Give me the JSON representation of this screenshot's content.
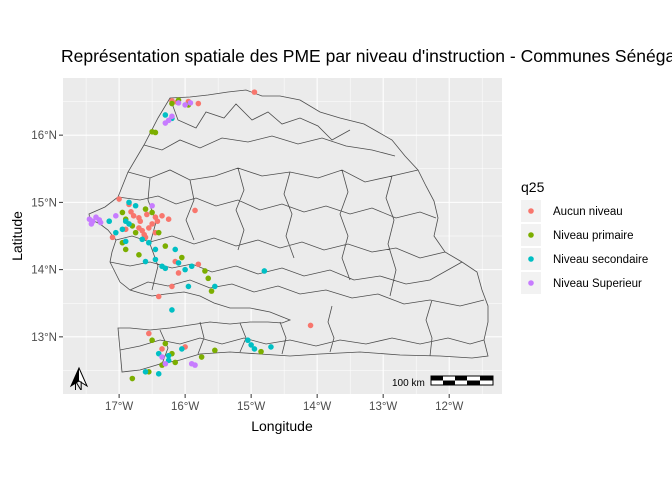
{
  "chart_data": {
    "type": "scatter",
    "title": "Représentation spatiale des PME par niveau d'instruction - Communes Sénégal",
    "xlabel": "Longitude",
    "ylabel": "Latitude",
    "xlim": [
      -17.85,
      -11.2
    ],
    "ylim": [
      12.15,
      16.85
    ],
    "x_ticks": [
      -17,
      -16,
      -15,
      -14,
      -13,
      -12
    ],
    "x_tick_labels": [
      "17°W",
      "16°W",
      "15°W",
      "14°W",
      "13°W",
      "12°W"
    ],
    "y_ticks": [
      13,
      14,
      15,
      16
    ],
    "y_tick_labels": [
      "13°N",
      "14°N",
      "15°N",
      "16°N"
    ],
    "grid": true,
    "legend_placement": "right",
    "legend_title": "q25",
    "scale_bar_label": "100 km",
    "north_arrow_label": "N",
    "series": [
      {
        "name": "Aucun niveau",
        "color": "#F8766D",
        "points": [
          [
            -16.2,
            16.51
          ],
          [
            -16.12,
            16.49
          ],
          [
            -15.95,
            16.5
          ],
          [
            -15.8,
            16.47
          ],
          [
            -14.95,
            16.64
          ],
          [
            -17.0,
            15.05
          ],
          [
            -16.85,
            14.97
          ],
          [
            -16.82,
            14.86
          ],
          [
            -16.78,
            14.8
          ],
          [
            -16.7,
            14.77
          ],
          [
            -16.68,
            14.72
          ],
          [
            -16.7,
            14.62
          ],
          [
            -16.65,
            14.58
          ],
          [
            -16.62,
            14.52
          ],
          [
            -16.6,
            14.48
          ],
          [
            -16.55,
            14.62
          ],
          [
            -16.5,
            14.68
          ],
          [
            -16.45,
            14.78
          ],
          [
            -16.42,
            14.72
          ],
          [
            -16.45,
            14.55
          ],
          [
            -16.35,
            14.8
          ],
          [
            -16.25,
            14.75
          ],
          [
            -16.58,
            14.82
          ],
          [
            -15.85,
            14.88
          ],
          [
            -15.8,
            14.08
          ],
          [
            -16.15,
            14.12
          ],
          [
            -16.1,
            13.95
          ],
          [
            -16.2,
            13.75
          ],
          [
            -16.4,
            13.6
          ],
          [
            -14.1,
            13.17
          ],
          [
            -16.55,
            13.05
          ],
          [
            -16.0,
            12.85
          ],
          [
            -16.35,
            12.82
          ],
          [
            -17.1,
            14.48
          ],
          [
            -16.9,
            14.6
          ]
        ]
      },
      {
        "name": "Niveau primaire",
        "color": "#7CAE00",
        "points": [
          [
            -16.5,
            16.05
          ],
          [
            -16.45,
            16.04
          ],
          [
            -16.2,
            16.47
          ],
          [
            -16.1,
            16.52
          ],
          [
            -15.95,
            16.45
          ],
          [
            -16.95,
            14.85
          ],
          [
            -16.9,
            14.75
          ],
          [
            -16.8,
            14.65
          ],
          [
            -16.75,
            14.55
          ],
          [
            -16.6,
            14.9
          ],
          [
            -16.5,
            14.85
          ],
          [
            -16.4,
            14.55
          ],
          [
            -16.3,
            14.35
          ],
          [
            -16.95,
            14.4
          ],
          [
            -16.9,
            14.3
          ],
          [
            -16.05,
            14.18
          ],
          [
            -15.7,
            13.98
          ],
          [
            -15.65,
            13.87
          ],
          [
            -15.6,
            13.68
          ],
          [
            -16.5,
            12.95
          ],
          [
            -16.3,
            12.9
          ],
          [
            -16.2,
            12.75
          ],
          [
            -15.75,
            12.7
          ],
          [
            -15.55,
            12.8
          ],
          [
            -14.85,
            12.78
          ],
          [
            -16.8,
            12.38
          ],
          [
            -16.55,
            12.48
          ],
          [
            -16.35,
            12.58
          ],
          [
            -16.15,
            12.62
          ],
          [
            -16.7,
            14.22
          ]
        ]
      },
      {
        "name": "Niveau secondaire",
        "color": "#00BFC4",
        "points": [
          [
            -16.3,
            16.3
          ],
          [
            -16.2,
            16.25
          ],
          [
            -16.85,
            15.0
          ],
          [
            -16.75,
            14.95
          ],
          [
            -16.9,
            14.72
          ],
          [
            -16.85,
            14.68
          ],
          [
            -16.95,
            14.6
          ],
          [
            -17.05,
            14.55
          ],
          [
            -16.65,
            14.45
          ],
          [
            -16.55,
            14.4
          ],
          [
            -16.45,
            14.3
          ],
          [
            -16.6,
            14.12
          ],
          [
            -16.45,
            14.15
          ],
          [
            -16.35,
            14.05
          ],
          [
            -16.3,
            14.02
          ],
          [
            -16.1,
            14.1
          ],
          [
            -16.0,
            14.0
          ],
          [
            -15.9,
            14.05
          ],
          [
            -15.95,
            13.75
          ],
          [
            -15.55,
            13.75
          ],
          [
            -14.8,
            13.98
          ],
          [
            -16.2,
            13.4
          ],
          [
            -16.05,
            12.82
          ],
          [
            -16.25,
            12.72
          ],
          [
            -16.4,
            12.75
          ],
          [
            -16.6,
            12.48
          ],
          [
            -16.4,
            12.45
          ],
          [
            -15.05,
            12.95
          ],
          [
            -15.0,
            12.88
          ],
          [
            -14.95,
            12.82
          ],
          [
            -14.7,
            12.85
          ],
          [
            -17.15,
            14.72
          ],
          [
            -16.9,
            14.42
          ],
          [
            -16.15,
            14.3
          ],
          [
            -16.25,
            12.65
          ]
        ]
      },
      {
        "name": "Niveau Superieur",
        "color": "#C77CFF",
        "points": [
          [
            -16.3,
            16.18
          ],
          [
            -16.25,
            16.22
          ],
          [
            -16.2,
            16.28
          ],
          [
            -16.0,
            16.45
          ],
          [
            -15.92,
            16.48
          ],
          [
            -17.45,
            14.75
          ],
          [
            -17.4,
            14.72
          ],
          [
            -17.35,
            14.78
          ],
          [
            -17.3,
            14.74
          ],
          [
            -17.28,
            14.7
          ],
          [
            -17.42,
            14.68
          ],
          [
            -17.05,
            14.8
          ],
          [
            -16.35,
            12.7
          ],
          [
            -16.3,
            12.6
          ],
          [
            -15.9,
            12.6
          ],
          [
            -15.85,
            12.58
          ],
          [
            -16.5,
            14.95
          ],
          [
            -16.1,
            16.48
          ]
        ]
      }
    ]
  }
}
